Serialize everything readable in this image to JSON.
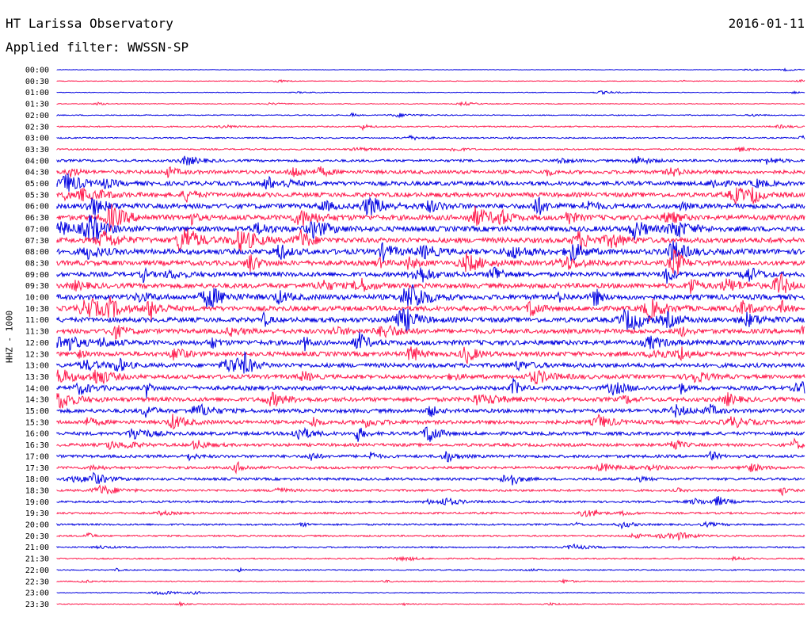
{
  "header": {
    "station": "HT Larissa Observatory",
    "date": "2016-01-11",
    "filter": "Applied filter: WWSSN-SP"
  },
  "chart_data": {
    "type": "line",
    "title": "HT Larissa Observatory",
    "ylabel": "HHZ - 1000",
    "rows": [
      "00:00",
      "00:30",
      "01:00",
      "01:30",
      "02:00",
      "02:30",
      "03:00",
      "03:30",
      "04:00",
      "04:30",
      "05:00",
      "05:30",
      "06:00",
      "06:30",
      "07:00",
      "07:30",
      "08:00",
      "08:30",
      "09:00",
      "09:30",
      "10:00",
      "10:30",
      "11:00",
      "11:30",
      "12:00",
      "12:30",
      "13:00",
      "13:30",
      "14:00",
      "14:30",
      "15:00",
      "15:30",
      "16:00",
      "16:30",
      "17:00",
      "17:30",
      "18:00",
      "18:30",
      "19:00",
      "19:30",
      "20:00",
      "20:30",
      "21:00",
      "21:30",
      "22:00",
      "22:30",
      "23:00",
      "23:30"
    ],
    "x_range_minutes": [
      0,
      30
    ],
    "noise_level": [
      0.3,
      0.4,
      0.4,
      0.5,
      0.6,
      0.8,
      0.8,
      0.9,
      1.5,
      2.2,
      2.6,
      2.8,
      3,
      3.2,
      3.2,
      3.2,
      3.3,
      3,
      2.8,
      3,
      3.2,
      3,
      3,
      2.8,
      3,
      2.8,
      2.6,
      2.5,
      2.5,
      2.6,
      2.4,
      2.3,
      2.1,
      1.9,
      1.8,
      1.6,
      1.6,
      1.4,
      1.3,
      1.2,
      1.1,
      1,
      0.9,
      0.8,
      0.7,
      0.6,
      0.5,
      0.5
    ],
    "colors": [
      "#0000e0",
      "#ff1a4d"
    ]
  }
}
